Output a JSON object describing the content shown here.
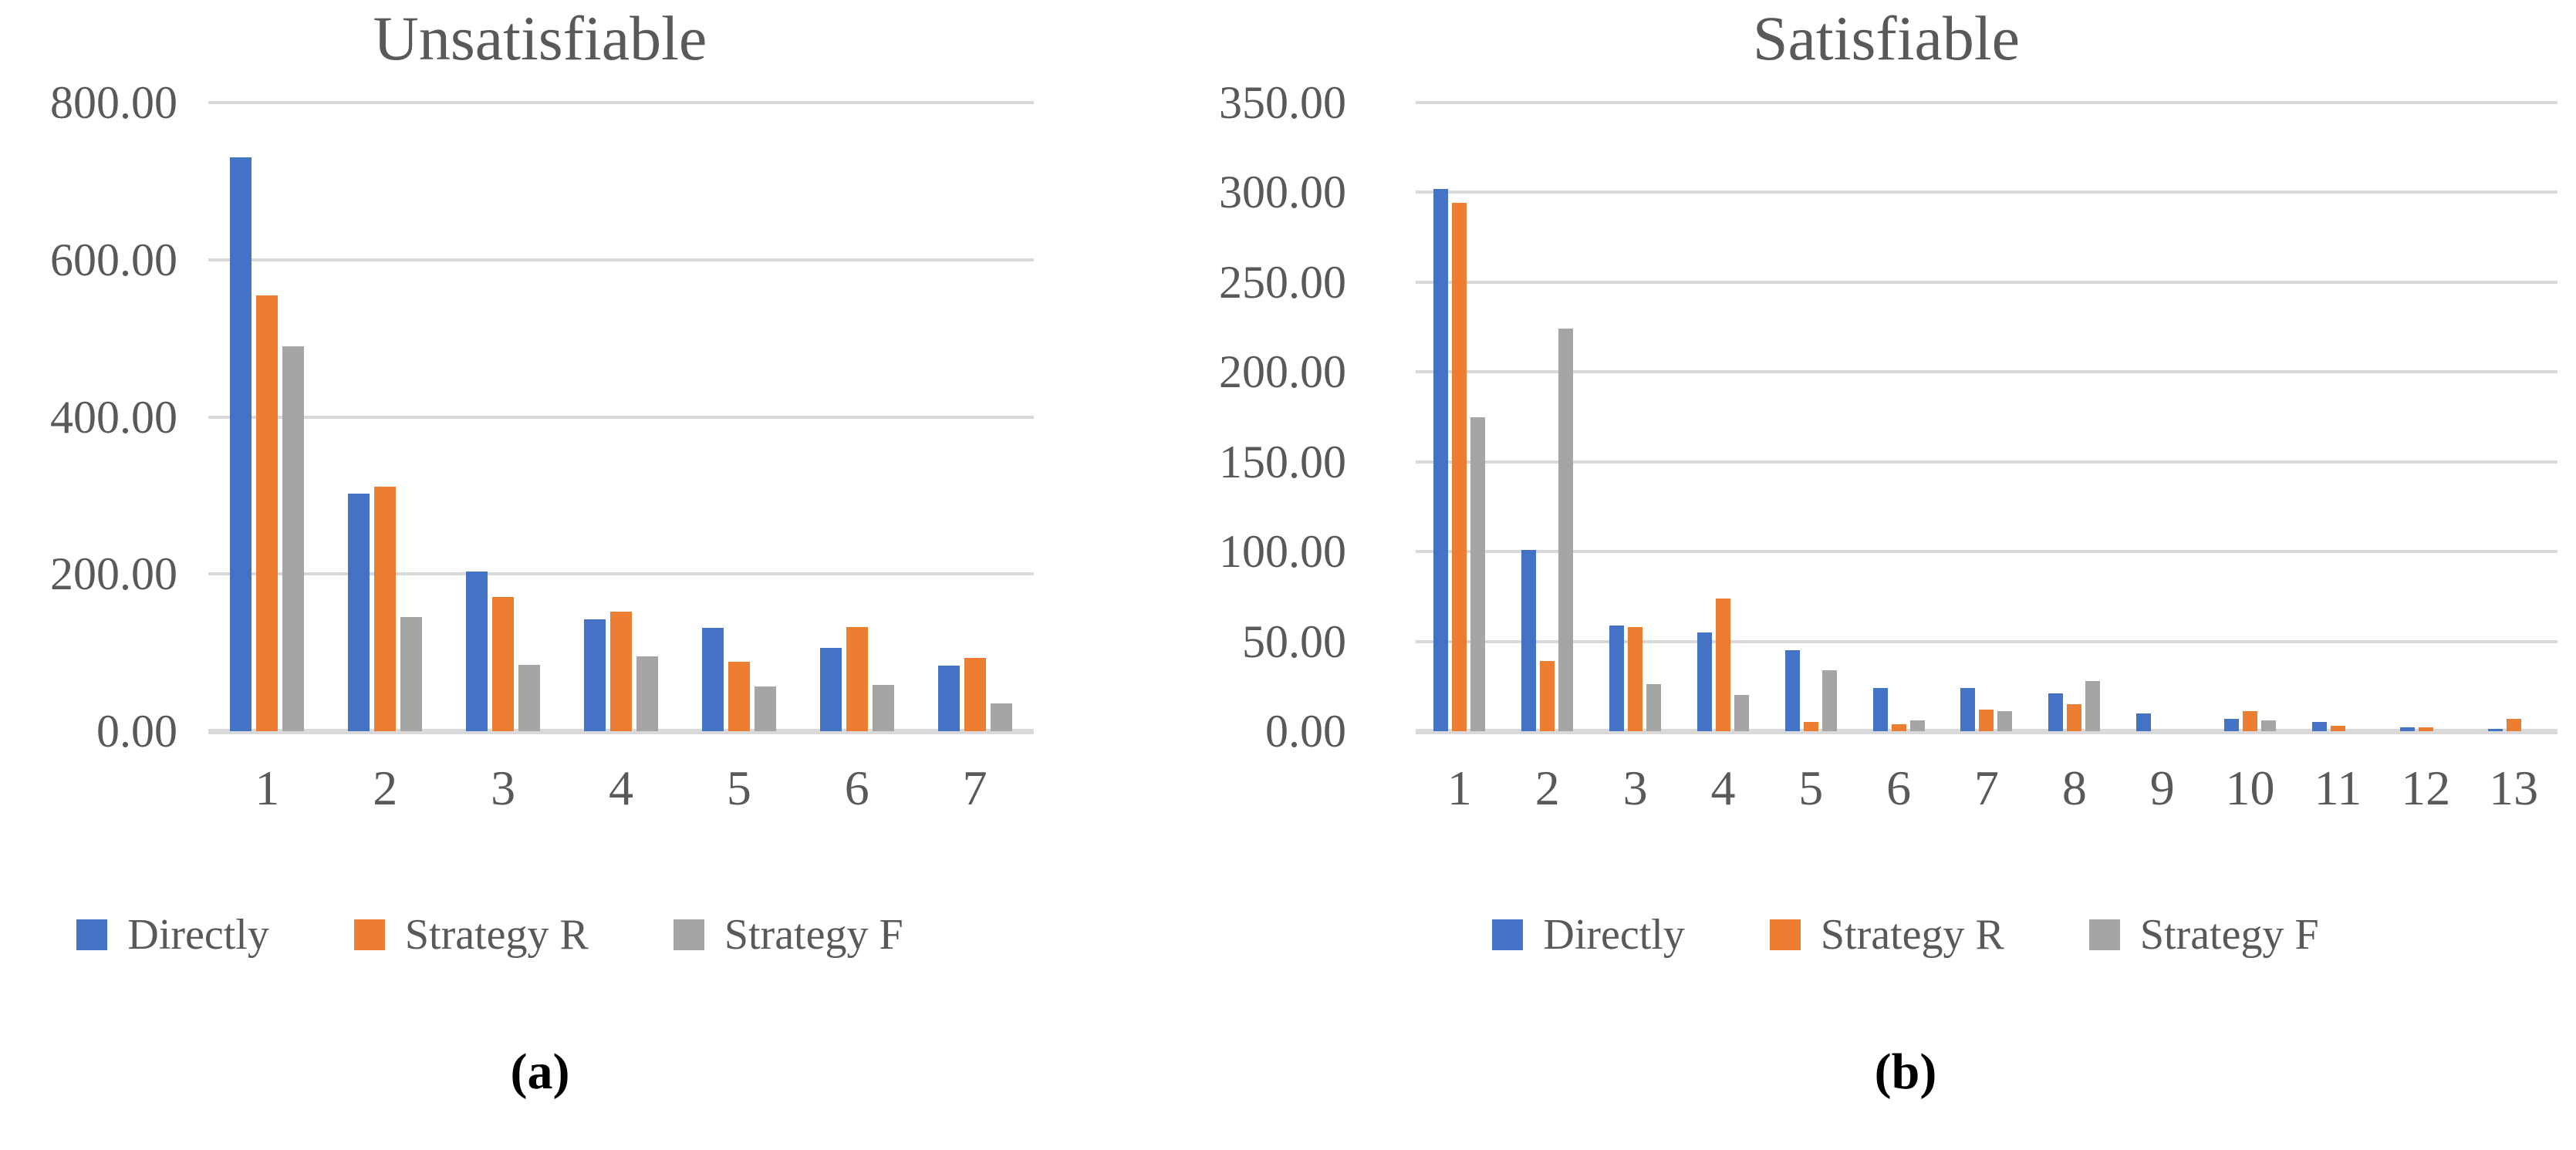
{
  "figure": {
    "captions": [
      "(a)",
      "(b)"
    ],
    "colors": {
      "series_blue": "#4472C4",
      "series_orange": "#ED7D31",
      "series_gray": "#A5A5A5",
      "text": "#595959",
      "gridline": "#D9D9D9",
      "caption": "#000000"
    }
  },
  "chart_data": [
    {
      "type": "bar",
      "title": "Unsatisfiable",
      "categories": [
        "1",
        "2",
        "3",
        "4",
        "5",
        "6",
        "7"
      ],
      "series": [
        {
          "name": "Directly",
          "color": "#4472C4",
          "values": [
            730,
            302,
            203,
            142,
            132,
            106,
            83
          ]
        },
        {
          "name": "Strategy R",
          "color": "#ED7D31",
          "values": [
            555,
            311,
            171,
            152,
            88,
            133,
            93
          ]
        },
        {
          "name": "Strategy F",
          "color": "#A5A5A5",
          "values": [
            490,
            145,
            84,
            95,
            57,
            59,
            35
          ]
        }
      ],
      "ylim": [
        0,
        800
      ],
      "yticks": [
        "800.00",
        "600.00",
        "400.00",
        "200.00",
        "0.00"
      ],
      "grid": true,
      "legend_position": "bottom"
    },
    {
      "type": "bar",
      "title": "Satisfiable",
      "categories": [
        "1",
        "2",
        "3",
        "4",
        "5",
        "6",
        "7",
        "8",
        "9",
        "10",
        "11",
        "12",
        "13"
      ],
      "series": [
        {
          "name": "Directly",
          "color": "#4472C4",
          "values": [
            302,
            101,
            59,
            55,
            45,
            24,
            24,
            21,
            10,
            7,
            5,
            2,
            1.5
          ]
        },
        {
          "name": "Strategy R",
          "color": "#ED7D31",
          "values": [
            294,
            39,
            58,
            74,
            5,
            4,
            12,
            15,
            0,
            11,
            3,
            2,
            7
          ]
        },
        {
          "name": "Strategy F",
          "color": "#A5A5A5",
          "values": [
            175,
            224,
            26,
            20,
            34,
            6,
            11,
            28,
            0,
            6,
            0,
            0,
            0
          ]
        }
      ],
      "ylim": [
        0,
        350
      ],
      "yticks": [
        "350.00",
        "300.00",
        "250.00",
        "200.00",
        "150.00",
        "100.00",
        "50.00",
        "0.00"
      ],
      "grid": true,
      "legend_position": "bottom"
    }
  ]
}
